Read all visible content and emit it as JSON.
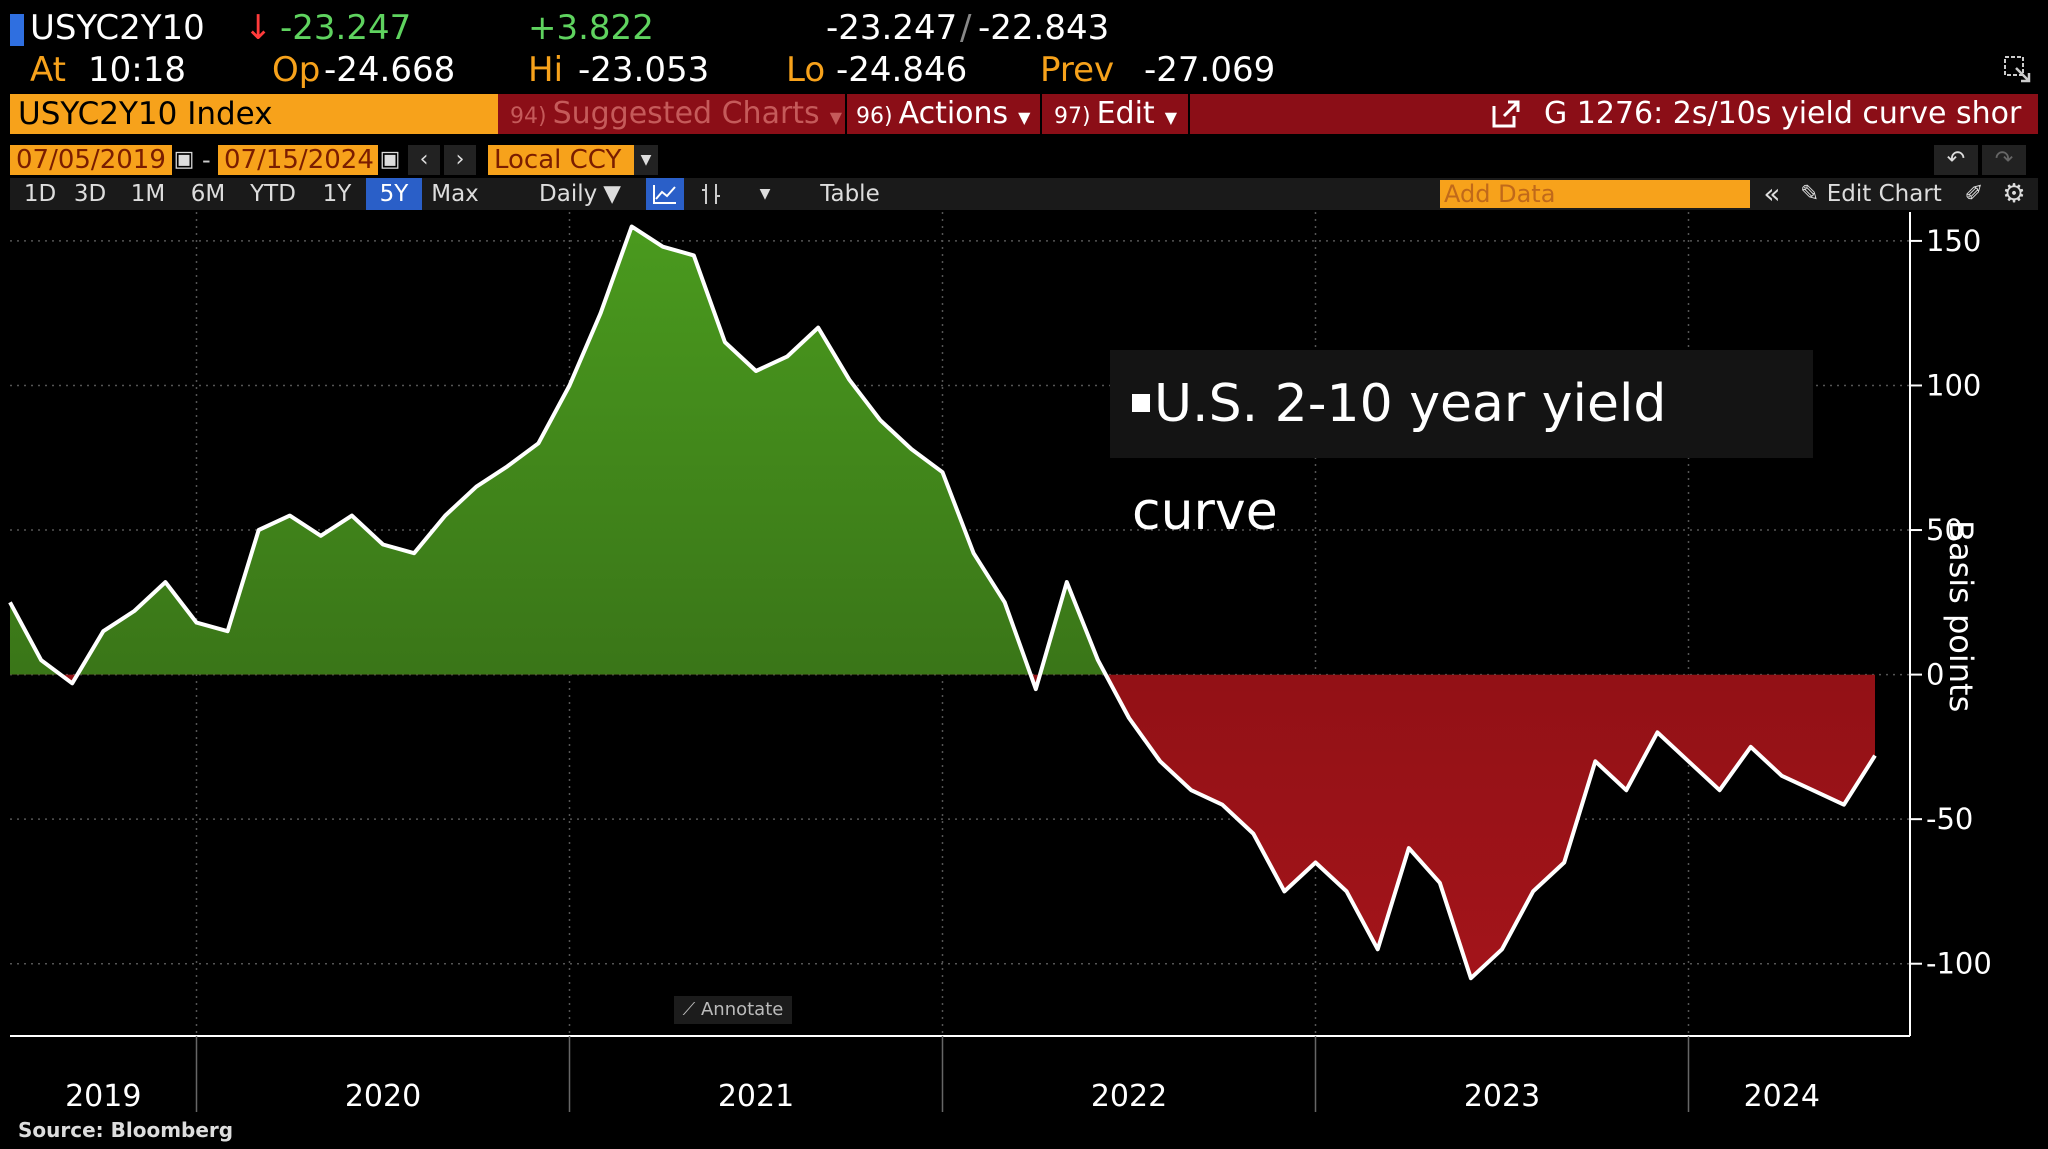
{
  "header": {
    "ticker": "USYC2Y10",
    "last": "-23.247",
    "change": "+3.822",
    "bid": "-23.247",
    "bid_sep": "/",
    "ask": "-22.843",
    "at_label": "At",
    "time": "10:18",
    "op_label": "Op",
    "op": "-24.668",
    "hi_label": "Hi",
    "hi": "-23.053",
    "lo_label": "Lo",
    "lo": "-24.846",
    "prev_label": "Prev",
    "prev": "-27.069",
    "colors": {
      "up": "#5fd35f",
      "down": "#ff3b3b",
      "accent": "#f7a21b",
      "bar": "#8b0e17"
    }
  },
  "commandbar": {
    "index_label": "USYC2Y10 Index",
    "suggested": {
      "num": "94)",
      "label": "Suggested Charts"
    },
    "actions": {
      "num": "96)",
      "label": "Actions"
    },
    "edit": {
      "num": "97)",
      "label": "Edit"
    },
    "chart_title": "G 1276: 2s/10s yield curve shor"
  },
  "dates": {
    "start": "07/05/2019",
    "end": "07/15/2024",
    "dash": "-",
    "currency": "Local CCY"
  },
  "toolbar": {
    "ranges": [
      "1D",
      "3D",
      "1M",
      "6M",
      "YTD",
      "1Y",
      "5Y",
      "Max"
    ],
    "active_range": "5Y",
    "frequency": "Daily",
    "table_label": "Table",
    "add_data_placeholder": "Add Data",
    "edit_chart_label": "Edit Chart"
  },
  "legend_label": "U.S. 2-10 year yield curve",
  "annotate_label": "Annotate",
  "source": "Source: Bloomberg",
  "chart_data": {
    "type": "area",
    "series": [
      {
        "name": "U.S. 2-10 year yield curve",
        "x": [
          "2019-07",
          "2019-08",
          "2019-09",
          "2019-10",
          "2019-11",
          "2019-12",
          "2020-01",
          "2020-02",
          "2020-03",
          "2020-04",
          "2020-05",
          "2020-06",
          "2020-07",
          "2020-08",
          "2020-09",
          "2020-10",
          "2020-11",
          "2020-12",
          "2021-01",
          "2021-02",
          "2021-03",
          "2021-04",
          "2021-05",
          "2021-06",
          "2021-07",
          "2021-08",
          "2021-09",
          "2021-10",
          "2021-11",
          "2021-12",
          "2022-01",
          "2022-02",
          "2022-03",
          "2022-04",
          "2022-05",
          "2022-06",
          "2022-07",
          "2022-08",
          "2022-09",
          "2022-10",
          "2022-11",
          "2022-12",
          "2023-01",
          "2023-02",
          "2023-03",
          "2023-04",
          "2023-05",
          "2023-06",
          "2023-07",
          "2023-08",
          "2023-09",
          "2023-10",
          "2023-11",
          "2023-12",
          "2024-01",
          "2024-02",
          "2024-03",
          "2024-04",
          "2024-05",
          "2024-06",
          "2024-07"
        ],
        "values": [
          25,
          5,
          -3,
          15,
          22,
          32,
          18,
          15,
          50,
          55,
          48,
          55,
          45,
          42,
          55,
          65,
          72,
          80,
          100,
          125,
          155,
          148,
          145,
          115,
          105,
          110,
          120,
          102,
          88,
          78,
          70,
          42,
          25,
          -5,
          32,
          5,
          -15,
          -30,
          -40,
          -45,
          -55,
          -75,
          -65,
          -75,
          -95,
          -60,
          -72,
          -105,
          -95,
          -75,
          -65,
          -30,
          -40,
          -20,
          -30,
          -40,
          -25,
          -35,
          -40,
          -45,
          -28
        ]
      }
    ],
    "ylabel": "Basis points",
    "ylim": [
      -125,
      160
    ],
    "yticks": [
      150,
      100,
      50,
      0,
      -50,
      -100
    ],
    "xticks": [
      "2019",
      "2020",
      "2021",
      "2022",
      "2023",
      "2024"
    ],
    "grid": true,
    "legend": "top-right",
    "colors": {
      "positive": "#3f7a1a",
      "negative": "#8a0f14",
      "line": "#ffffff"
    }
  }
}
